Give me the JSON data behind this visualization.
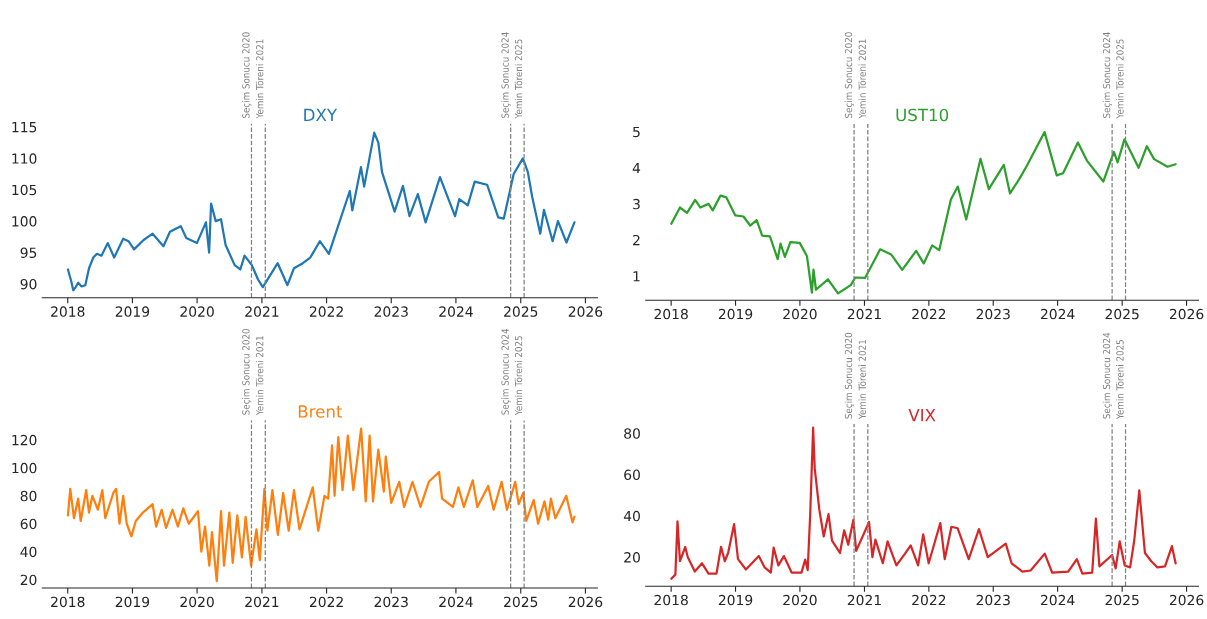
{
  "chart_data": [
    {
      "type": "line",
      "title": "DXY",
      "grid": false,
      "xlim": [
        "2017-08-10",
        "2026-03-10"
      ],
      "ylim": [
        87.8,
        115.5
      ],
      "xticks": [
        "2018",
        "2019",
        "2020",
        "2021",
        "2022",
        "2023",
        "2024",
        "2025",
        "2026"
      ],
      "yticks": [
        90,
        95,
        100,
        105,
        110,
        115
      ],
      "x": [
        "2018-01-02",
        "2018-01-20",
        "2018-02-01",
        "2018-02-15",
        "2018-03-01",
        "2018-03-20",
        "2018-04-10",
        "2018-05-01",
        "2018-05-25",
        "2018-06-15",
        "2018-07-10",
        "2018-08-15",
        "2018-09-20",
        "2018-11-10",
        "2018-12-10",
        "2019-01-10",
        "2019-03-05",
        "2019-04-25",
        "2019-06-25",
        "2019-08-01",
        "2019-10-01",
        "2019-11-01",
        "2019-12-31",
        "2020-02-20",
        "2020-03-09",
        "2020-03-20",
        "2020-04-15",
        "2020-05-15",
        "2020-06-10",
        "2020-07-31",
        "2020-09-01",
        "2020-09-25",
        "2020-11-05",
        "2020-12-10",
        "2021-01-06",
        "2021-03-31",
        "2021-05-25",
        "2021-07-01",
        "2021-08-20",
        "2021-10-01",
        "2021-11-24",
        "2022-01-14",
        "2022-03-07",
        "2022-05-12",
        "2022-05-26",
        "2022-07-14",
        "2022-08-01",
        "2022-09-27",
        "2022-10-20",
        "2022-11-10",
        "2023-01-20",
        "2023-03-08",
        "2023-04-14",
        "2023-05-31",
        "2023-07-14",
        "2023-10-03",
        "2023-12-27",
        "2024-01-20",
        "2024-03-08",
        "2024-04-16",
        "2024-06-25",
        "2024-08-27",
        "2024-09-27",
        "2024-11-22",
        "2025-01-13",
        "2025-02-10",
        "2025-03-07",
        "2025-04-21",
        "2025-05-12",
        "2025-06-30",
        "2025-07-30",
        "2025-09-16",
        "2025-10-31"
      ],
      "series": [
        {
          "color": "#1f77b4",
          "values": [
            92.3,
            90.5,
            89.0,
            89.5,
            90.2,
            89.6,
            89.8,
            92.5,
            94.2,
            94.8,
            94.5,
            96.5,
            94.2,
            97.2,
            96.8,
            95.5,
            97.0,
            98.0,
            96.0,
            98.3,
            99.2,
            97.3,
            96.5,
            99.8,
            95.0,
            102.8,
            100.0,
            100.3,
            96.2,
            93.0,
            92.3,
            94.5,
            93.0,
            90.7,
            89.5,
            93.3,
            89.8,
            92.5,
            93.3,
            94.2,
            96.8,
            94.8,
            99.2,
            104.8,
            101.7,
            108.6,
            105.5,
            114.1,
            112.5,
            107.8,
            101.5,
            105.6,
            100.8,
            104.3,
            99.8,
            107.0,
            100.8,
            103.5,
            102.5,
            106.3,
            105.8,
            100.6,
            100.4,
            107.5,
            110.0,
            107.8,
            103.8,
            98.0,
            101.8,
            96.8,
            100.0,
            96.6,
            99.8
          ]
        }
      ],
      "ref_lines": [
        {
          "axis": "x",
          "value": "2020-11-03",
          "label": "Seçim Sonucu 2020",
          "color": "#808080",
          "line_style": "dashed"
        },
        {
          "axis": "x",
          "value": "2021-01-20",
          "label": "Yemin Töreni 2021",
          "color": "#808080",
          "line_style": "dashed"
        },
        {
          "axis": "x",
          "value": "2024-11-05",
          "label": "Seçim Sonucu 2024",
          "color": "#808080",
          "line_style": "dashed"
        },
        {
          "axis": "x",
          "value": "2025-01-20",
          "label": "Yemin Töreni 2025",
          "color": "#808080",
          "line_style": "dashed"
        }
      ]
    },
    {
      "type": "line",
      "title": "UST10",
      "grid": false,
      "xlim": [
        "2017-08-10",
        "2026-03-10"
      ],
      "ylim": [
        0.33,
        5.22
      ],
      "xticks": [
        "2018",
        "2019",
        "2020",
        "2021",
        "2022",
        "2023",
        "2024",
        "2025",
        "2026"
      ],
      "yticks": [
        1,
        2,
        3,
        4,
        5
      ],
      "x": [
        "2018-01-02",
        "2018-02-20",
        "2018-04-01",
        "2018-05-17",
        "2018-06-15",
        "2018-08-01",
        "2018-08-25",
        "2018-10-08",
        "2018-11-10",
        "2018-12-31",
        "2019-02-15",
        "2019-03-25",
        "2019-05-01",
        "2019-06-01",
        "2019-07-15",
        "2019-08-28",
        "2019-09-13",
        "2019-10-08",
        "2019-11-08",
        "2019-12-31",
        "2020-02-10",
        "2020-03-09",
        "2020-03-18",
        "2020-04-01",
        "2020-06-08",
        "2020-08-04",
        "2020-10-15",
        "2020-11-10",
        "2021-01-05",
        "2021-03-31",
        "2021-06-01",
        "2021-08-03",
        "2021-10-21",
        "2021-12-03",
        "2022-01-20",
        "2022-03-01",
        "2022-05-06",
        "2022-06-14",
        "2022-08-01",
        "2022-10-21",
        "2022-12-07",
        "2023-03-02",
        "2023-04-06",
        "2023-05-30",
        "2023-07-10",
        "2023-10-19",
        "2023-12-27",
        "2024-02-01",
        "2024-04-25",
        "2024-06-15",
        "2024-09-16",
        "2024-11-15",
        "2024-12-06",
        "2025-01-14",
        "2025-04-04",
        "2025-05-21",
        "2025-07-01",
        "2025-09-15",
        "2025-10-31"
      ],
      "series": [
        {
          "color": "#2ca02c",
          "values": [
            2.45,
            2.9,
            2.75,
            3.11,
            2.9,
            3.0,
            2.82,
            3.23,
            3.18,
            2.68,
            2.65,
            2.4,
            2.55,
            2.12,
            2.1,
            1.47,
            1.9,
            1.53,
            1.94,
            1.92,
            1.55,
            0.54,
            1.18,
            0.62,
            0.91,
            0.52,
            0.75,
            0.96,
            0.95,
            1.74,
            1.6,
            1.17,
            1.7,
            1.35,
            1.85,
            1.72,
            3.12,
            3.48,
            2.57,
            4.25,
            3.41,
            4.08,
            3.29,
            3.7,
            4.05,
            4.99,
            3.79,
            3.85,
            4.7,
            4.2,
            3.62,
            4.44,
            4.15,
            4.79,
            4.0,
            4.6,
            4.24,
            4.03,
            4.1
          ]
        }
      ],
      "ref_lines": [
        {
          "axis": "x",
          "value": "2020-11-03",
          "label": "Seçim Sonucu 2020",
          "color": "#808080",
          "line_style": "dashed"
        },
        {
          "axis": "x",
          "value": "2021-01-20",
          "label": "Yemin Töreni 2021",
          "color": "#808080",
          "line_style": "dashed"
        },
        {
          "axis": "x",
          "value": "2024-11-05",
          "label": "Seçim Sonucu 2024",
          "color": "#808080",
          "line_style": "dashed"
        },
        {
          "axis": "x",
          "value": "2025-01-20",
          "label": "Yemin Töreni 2025",
          "color": "#808080",
          "line_style": "dashed"
        }
      ]
    },
    {
      "type": "line",
      "title": "Brent",
      "grid": false,
      "xlim": [
        "2017-08-10",
        "2026-03-10"
      ],
      "ylim": [
        14,
        134
      ],
      "xticks": [
        "2018",
        "2019",
        "2020",
        "2021",
        "2022",
        "2023",
        "2024",
        "2025",
        "2026"
      ],
      "yticks": [
        20,
        40,
        60,
        80,
        100,
        120
      ],
      "x": [
        "2018-01-02",
        "2018-01-15",
        "2018-02-05",
        "2018-03-01",
        "2018-03-15",
        "2018-04-15",
        "2018-05-01",
        "2018-05-20",
        "2018-06-20",
        "2018-07-15",
        "2018-08-01",
        "2018-09-15",
        "2018-10-01",
        "2018-10-20",
        "2018-11-10",
        "2018-11-30",
        "2018-12-26",
        "2019-01-20",
        "2019-03-01",
        "2019-04-25",
        "2019-05-15",
        "2019-06-15",
        "2019-07-10",
        "2019-08-15",
        "2019-09-15",
        "2019-10-15",
        "2019-11-15",
        "2020-01-06",
        "2020-01-25",
        "2020-02-15",
        "2020-03-10",
        "2020-03-25",
        "2020-04-21",
        "2020-05-15",
        "2020-06-01",
        "2020-07-01",
        "2020-07-20",
        "2020-08-15",
        "2020-09-10",
        "2020-10-01",
        "2020-11-01",
        "2020-12-01",
        "2020-12-20",
        "2021-01-15",
        "2021-02-01",
        "2021-03-01",
        "2021-04-01",
        "2021-05-01",
        "2021-06-01",
        "2021-07-01",
        "2021-08-01",
        "2021-10-15",
        "2021-11-15",
        "2021-12-20",
        "2022-01-10",
        "2022-02-01",
        "2022-02-15",
        "2022-03-08",
        "2022-04-01",
        "2022-05-01",
        "2022-06-01",
        "2022-07-15",
        "2022-08-10",
        "2022-09-01",
        "2022-09-20",
        "2022-10-20",
        "2022-11-20",
        "2022-12-01",
        "2023-01-01",
        "2023-02-15",
        "2023-03-15",
        "2023-05-01",
        "2023-06-15",
        "2023-08-01",
        "2023-09-28",
        "2023-10-15",
        "2023-12-15",
        "2024-01-15",
        "2024-02-15",
        "2024-04-05",
        "2024-05-01",
        "2024-07-01",
        "2024-08-01",
        "2024-09-15",
        "2024-10-15",
        "2024-12-01",
        "2024-12-20",
        "2025-01-15",
        "2025-02-01",
        "2025-03-15",
        "2025-04-09",
        "2025-05-15",
        "2025-06-05",
        "2025-06-20",
        "2025-07-15",
        "2025-09-15",
        "2025-10-20",
        "2025-10-31"
      ],
      "series": [
        {
          "color": "#ff7f0e",
          "values": [
            66,
            85,
            64,
            78,
            62,
            84,
            68,
            80,
            70,
            84,
            64,
            82,
            85,
            60,
            80,
            60,
            51,
            62,
            68,
            74,
            58,
            70,
            57,
            70,
            58,
            71,
            60,
            69,
            40,
            58,
            30,
            54,
            19,
            69,
            30,
            68,
            32,
            66,
            36,
            65,
            30,
            56,
            34,
            85,
            55,
            84,
            52,
            82,
            55,
            84,
            56,
            86,
            55,
            80,
            78,
            116,
            80,
            122,
            84,
            123,
            84,
            128,
            76,
            123,
            76,
            113,
            83,
            108,
            75,
            90,
            72,
            90,
            72,
            90,
            97,
            78,
            72,
            86,
            72,
            91,
            72,
            87,
            70,
            90,
            70,
            90,
            74,
            82,
            62,
            77,
            60,
            76,
            63,
            78,
            64,
            80,
            61,
            65
          ]
        }
      ],
      "ref_lines": [
        {
          "axis": "x",
          "value": "2020-11-03",
          "label": "Seçim Sonucu 2020",
          "color": "#808080",
          "line_style": "dashed"
        },
        {
          "axis": "x",
          "value": "2021-01-20",
          "label": "Yemin Töreni 2021",
          "color": "#808080",
          "line_style": "dashed"
        },
        {
          "axis": "x",
          "value": "2024-11-05",
          "label": "Seçim Sonucu 2024",
          "color": "#808080",
          "line_style": "dashed"
        },
        {
          "axis": "x",
          "value": "2025-01-20",
          "label": "Yemin Töreni 2025",
          "color": "#808080",
          "line_style": "dashed"
        }
      ]
    },
    {
      "type": "line",
      "title": "VIX",
      "grid": false,
      "xlim": [
        "2017-08-10",
        "2026-03-10"
      ],
      "ylim": [
        5.9,
        84.5
      ],
      "xticks": [
        "2018",
        "2019",
        "2020",
        "2021",
        "2022",
        "2023",
        "2024",
        "2025",
        "2026"
      ],
      "yticks": [
        20,
        40,
        60,
        80
      ],
      "x": [
        "2018-01-02",
        "2018-01-25",
        "2018-02-06",
        "2018-02-20",
        "2018-03-22",
        "2018-04-05",
        "2018-05-15",
        "2018-06-25",
        "2018-08-01",
        "2018-09-15",
        "2018-10-11",
        "2018-11-01",
        "2018-11-20",
        "2018-12-24",
        "2019-01-15",
        "2019-03-01",
        "2019-05-13",
        "2019-06-15",
        "2019-07-20",
        "2019-08-05",
        "2019-09-01",
        "2019-10-02",
        "2019-11-15",
        "2020-01-10",
        "2020-01-31",
        "2020-02-14",
        "2020-02-28",
        "2020-03-16",
        "2020-03-25",
        "2020-04-20",
        "2020-05-15",
        "2020-06-11",
        "2020-07-01",
        "2020-08-15",
        "2020-09-08",
        "2020-10-01",
        "2020-10-30",
        "2020-11-15",
        "2021-01-27",
        "2021-02-15",
        "2021-03-04",
        "2021-04-15",
        "2021-05-12",
        "2021-07-01",
        "2021-08-19",
        "2021-09-20",
        "2021-11-01",
        "2021-11-30",
        "2021-12-31",
        "2022-03-07",
        "2022-04-01",
        "2022-05-09",
        "2022-06-13",
        "2022-08-15",
        "2022-10-12",
        "2022-12-01",
        "2023-03-13",
        "2023-04-15",
        "2023-06-15",
        "2023-08-01",
        "2023-10-20",
        "2023-12-01",
        "2024-03-01",
        "2024-04-19",
        "2024-05-20",
        "2024-07-15",
        "2024-08-05",
        "2024-08-25",
        "2024-11-05",
        "2024-11-25",
        "2024-12-18",
        "2025-01-15",
        "2025-02-15",
        "2025-03-10",
        "2025-04-08",
        "2025-05-10",
        "2025-06-15",
        "2025-07-20",
        "2025-09-01",
        "2025-10-10",
        "2025-10-31"
      ],
      "series": [
        {
          "color": "#d62728",
          "values": [
            9.5,
            11.5,
            37.3,
            18,
            24.9,
            20,
            13,
            17,
            12,
            12,
            25,
            18,
            22,
            36,
            19,
            14,
            20.5,
            15,
            12.5,
            24.6,
            16,
            20.5,
            12.5,
            12.5,
            18.8,
            13.7,
            40,
            82.7,
            63,
            43,
            30,
            40.8,
            28,
            22,
            33,
            26,
            38,
            23,
            37,
            20,
            28.5,
            17,
            27.6,
            16,
            21.7,
            25.7,
            16,
            31,
            17,
            36.5,
            19,
            34.7,
            34,
            19,
            33.6,
            20,
            26.5,
            17,
            13,
            13.5,
            21.7,
            12.5,
            13,
            19,
            12,
            12.5,
            38.6,
            15.5,
            21,
            14.5,
            27.6,
            16,
            15,
            27.8,
            52.3,
            22,
            18,
            15,
            15.5,
            25.3,
            17
          ]
        }
      ],
      "ref_lines": [
        {
          "axis": "x",
          "value": "2020-11-03",
          "label": "Seçim Sonucu 2020",
          "color": "#808080",
          "line_style": "dashed"
        },
        {
          "axis": "x",
          "value": "2021-01-20",
          "label": "Yemin Töreni 2021",
          "color": "#808080",
          "line_style": "dashed"
        },
        {
          "axis": "x",
          "value": "2024-11-05",
          "label": "Seçim Sonucu 2024",
          "color": "#808080",
          "line_style": "dashed"
        },
        {
          "axis": "x",
          "value": "2025-01-20",
          "label": "Yemin Töreni 2025",
          "color": "#808080",
          "line_style": "dashed"
        }
      ]
    }
  ]
}
